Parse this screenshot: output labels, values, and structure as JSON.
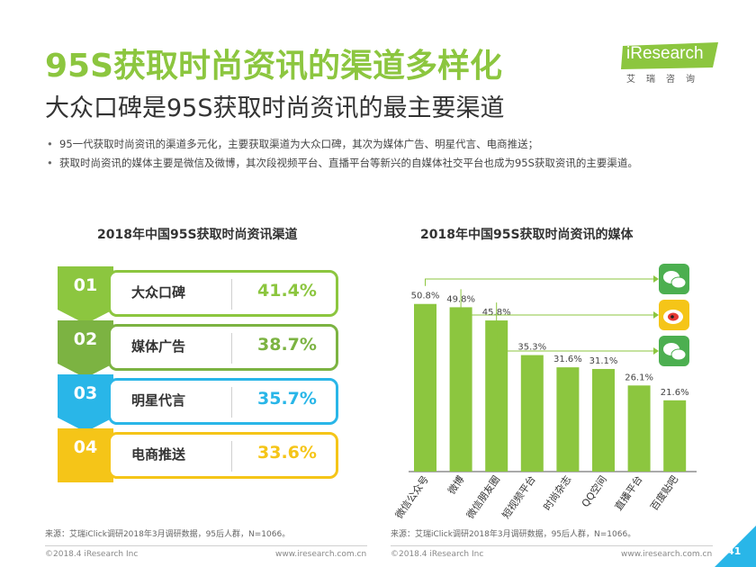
{
  "header": {
    "title": "95S获取时尚资讯的渠道多样化",
    "subtitle": "大众口碑是95S获取时尚资讯的最主要渠道"
  },
  "logo": {
    "word": "iResearch",
    "sub": "艾瑞咨询"
  },
  "bullets": [
    "95一代获取时尚资讯的渠道多元化，主要获取渠道为大众口碑，其次为媒体广告、明星代言、电商推送；",
    "获取时尚资讯的媒体主要是微信及微博，其次段视频平台、直播平台等新兴的自媒体社交平台也成为95S获取资讯的主要渠道。"
  ],
  "left_panel": {
    "title": "2018年中国95S获取时尚资讯渠道",
    "items": [
      {
        "num": "01",
        "label": "大众口碑",
        "value": "41.4%",
        "color": "#8cc63f"
      },
      {
        "num": "02",
        "label": "媒体广告",
        "value": "38.7%",
        "color": "#7cb342"
      },
      {
        "num": "03",
        "label": "明星代言",
        "value": "35.7%",
        "color": "#29b6e8"
      },
      {
        "num": "04",
        "label": "电商推送",
        "value": "33.6%",
        "color": "#f5c518"
      }
    ]
  },
  "chart_data": {
    "type": "bar",
    "title": "2018年中国95S获取时尚资讯的媒体",
    "categories": [
      "微信公众号",
      "微博",
      "微信朋友圈",
      "短视频平台",
      "时尚杂志",
      "QQ空间",
      "直播平台",
      "百度贴吧"
    ],
    "values": [
      50.8,
      49.8,
      45.8,
      35.3,
      31.6,
      31.1,
      26.1,
      21.6
    ],
    "value_labels": [
      "50.8%",
      "49.8%",
      "45.8%",
      "35.3%",
      "31.6%",
      "31.1%",
      "26.1%",
      "21.6%"
    ],
    "ylim": [
      0,
      60
    ],
    "grid": false,
    "bar_color": "#8cc63f",
    "icons": [
      "wechat-icon",
      "weibo-icon",
      "wechat-moments-icon"
    ]
  },
  "sources": {
    "left": "来源：艾瑞iClick调研2018年3月调研数据，95后人群，N=1066。",
    "right": "来源：艾瑞iClick调研2018年3月调研数据，95后人群，N=1066。"
  },
  "footer": {
    "left_copyright": "©2018.4 iResearch Inc",
    "left_url": "www.iresearch.com.cn",
    "right_copyright": "©2018.4 iResearch Inc",
    "right_url": "www.iresearch.com.cn",
    "page_number": "41"
  },
  "colors": {
    "accent_green": "#8cc63f",
    "blue": "#29b6e8",
    "yellow": "#f5c518"
  }
}
